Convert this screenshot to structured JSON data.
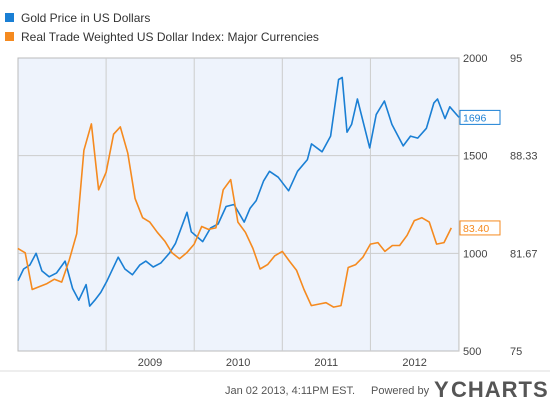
{
  "chart_data": {
    "type": "line",
    "x_ticks": [
      "2009",
      "2010",
      "2011",
      "2012"
    ],
    "y_left_ticks": [
      "2000",
      "1500",
      "1000",
      "500"
    ],
    "y_right_ticks": [
      "95",
      "88.33",
      "81.67",
      "75"
    ],
    "y_left_range": [
      500,
      2000
    ],
    "y_right_range": [
      75,
      95
    ],
    "x_range": [
      "2008-01-02",
      "2013-01-02"
    ],
    "grid": true,
    "legend_placement": "top-left",
    "series": [
      {
        "name": "Gold Price in US Dollars",
        "axis": "left",
        "color": "#1a7fd4",
        "last_value_label": "1696",
        "points": [
          [
            "2008-01-02",
            860
          ],
          [
            "2008-01-25",
            920
          ],
          [
            "2008-02-20",
            940
          ],
          [
            "2008-03-17",
            1000
          ],
          [
            "2008-04-10",
            910
          ],
          [
            "2008-05-10",
            880
          ],
          [
            "2008-06-10",
            900
          ],
          [
            "2008-07-15",
            960
          ],
          [
            "2008-08-15",
            820
          ],
          [
            "2008-09-10",
            760
          ],
          [
            "2008-10-10",
            840
          ],
          [
            "2008-10-25",
            730
          ],
          [
            "2008-11-15",
            760
          ],
          [
            "2008-12-10",
            800
          ],
          [
            "2009-01-05",
            860
          ],
          [
            "2009-02-20",
            980
          ],
          [
            "2009-03-20",
            920
          ],
          [
            "2009-04-20",
            890
          ],
          [
            "2009-05-20",
            940
          ],
          [
            "2009-06-15",
            960
          ],
          [
            "2009-07-15",
            930
          ],
          [
            "2009-08-15",
            950
          ],
          [
            "2009-09-20",
            1000
          ],
          [
            "2009-10-15",
            1050
          ],
          [
            "2009-12-02",
            1210
          ],
          [
            "2009-12-20",
            1110
          ],
          [
            "2010-02-05",
            1060
          ],
          [
            "2010-03-10",
            1130
          ],
          [
            "2010-04-10",
            1150
          ],
          [
            "2010-05-13",
            1240
          ],
          [
            "2010-06-15",
            1250
          ],
          [
            "2010-07-27",
            1160
          ],
          [
            "2010-08-20",
            1230
          ],
          [
            "2010-09-15",
            1270
          ],
          [
            "2010-10-15",
            1370
          ],
          [
            "2010-11-09",
            1420
          ],
          [
            "2010-12-15",
            1390
          ],
          [
            "2011-01-27",
            1320
          ],
          [
            "2011-03-05",
            1420
          ],
          [
            "2011-04-15",
            1480
          ],
          [
            "2011-05-02",
            1560
          ],
          [
            "2011-06-15",
            1520
          ],
          [
            "2011-07-20",
            1600
          ],
          [
            "2011-08-22",
            1890
          ],
          [
            "2011-09-06",
            1900
          ],
          [
            "2011-09-26",
            1620
          ],
          [
            "2011-10-15",
            1660
          ],
          [
            "2011-11-08",
            1790
          ],
          [
            "2011-12-29",
            1540
          ],
          [
            "2012-01-25",
            1710
          ],
          [
            "2012-02-28",
            1780
          ],
          [
            "2012-03-30",
            1660
          ],
          [
            "2012-05-16",
            1550
          ],
          [
            "2012-06-15",
            1600
          ],
          [
            "2012-07-15",
            1590
          ],
          [
            "2012-08-20",
            1640
          ],
          [
            "2012-09-20",
            1770
          ],
          [
            "2012-10-05",
            1790
          ],
          [
            "2012-11-05",
            1690
          ],
          [
            "2012-11-25",
            1750
          ],
          [
            "2013-01-02",
            1696
          ]
        ]
      },
      {
        "name": "Real Trade Weighted US Dollar Index: Major Currencies",
        "axis": "right",
        "color": "#f58a1f",
        "last_value_label": "83.40",
        "points": [
          [
            "2008-01-01",
            82.0
          ],
          [
            "2008-02-01",
            81.7
          ],
          [
            "2008-03-01",
            79.2
          ],
          [
            "2008-04-01",
            79.4
          ],
          [
            "2008-05-01",
            79.6
          ],
          [
            "2008-06-01",
            79.9
          ],
          [
            "2008-07-01",
            79.7
          ],
          [
            "2008-08-01",
            81.2
          ],
          [
            "2008-09-01",
            83.0
          ],
          [
            "2008-10-01",
            88.7
          ],
          [
            "2008-11-01",
            90.5
          ],
          [
            "2008-12-01",
            86.0
          ],
          [
            "2009-01-01",
            87.2
          ],
          [
            "2009-02-01",
            89.8
          ],
          [
            "2009-03-01",
            90.3
          ],
          [
            "2009-04-01",
            88.5
          ],
          [
            "2009-05-01",
            85.4
          ],
          [
            "2009-06-01",
            84.1
          ],
          [
            "2009-07-01",
            83.8
          ],
          [
            "2009-08-01",
            83.1
          ],
          [
            "2009-09-01",
            82.5
          ],
          [
            "2009-10-01",
            81.7
          ],
          [
            "2009-11-01",
            81.3
          ],
          [
            "2009-12-01",
            81.7
          ],
          [
            "2010-01-01",
            82.3
          ],
          [
            "2010-02-01",
            83.5
          ],
          [
            "2010-03-01",
            83.3
          ],
          [
            "2010-04-01",
            83.4
          ],
          [
            "2010-05-01",
            86.0
          ],
          [
            "2010-06-01",
            86.7
          ],
          [
            "2010-07-01",
            83.8
          ],
          [
            "2010-08-01",
            83.1
          ],
          [
            "2010-09-01",
            82.0
          ],
          [
            "2010-10-01",
            80.6
          ],
          [
            "2010-11-01",
            80.9
          ],
          [
            "2010-12-01",
            81.5
          ],
          [
            "2011-01-01",
            81.8
          ],
          [
            "2011-02-01",
            81.1
          ],
          [
            "2011-03-01",
            80.5
          ],
          [
            "2011-04-01",
            79.2
          ],
          [
            "2011-05-01",
            78.1
          ],
          [
            "2011-06-01",
            78.2
          ],
          [
            "2011-07-01",
            78.3
          ],
          [
            "2011-08-01",
            78.0
          ],
          [
            "2011-09-01",
            78.1
          ],
          [
            "2011-10-01",
            80.7
          ],
          [
            "2011-11-01",
            80.9
          ],
          [
            "2011-12-01",
            81.4
          ],
          [
            "2012-01-01",
            82.3
          ],
          [
            "2012-02-01",
            82.4
          ],
          [
            "2012-03-01",
            81.8
          ],
          [
            "2012-04-01",
            82.2
          ],
          [
            "2012-05-01",
            82.2
          ],
          [
            "2012-06-01",
            82.9
          ],
          [
            "2012-07-01",
            83.9
          ],
          [
            "2012-08-01",
            84.1
          ],
          [
            "2012-09-01",
            83.8
          ],
          [
            "2012-10-01",
            82.3
          ],
          [
            "2012-11-01",
            82.4
          ],
          [
            "2012-12-01",
            83.4
          ]
        ]
      }
    ]
  },
  "footer": {
    "timestamp": "Jan 02 2013, 4:11PM EST.",
    "powered_by": "Powered by",
    "brand": "CHARTS"
  },
  "colors": {
    "plot_background": "#eef3fc",
    "gridline": "#cccccc",
    "axis_line": "#999999"
  }
}
